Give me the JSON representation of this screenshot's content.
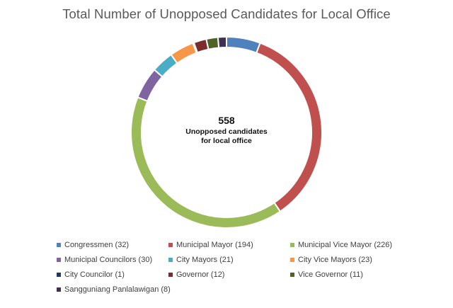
{
  "chart_data": {
    "type": "pie",
    "title": "Total Number of Unopposed Candidates for Local Office",
    "center": {
      "total": "558",
      "caption_line1": "Unopposed candidates",
      "caption_line2": "for local office"
    },
    "categories": [
      "Congressmen",
      "Municipal Mayor",
      "Municipal Vice Mayor",
      "Municipal Councilors",
      "City Mayors",
      "City Vice Mayors",
      "City Councilor",
      "Governor",
      "Vice Governor",
      "Sangguniang Panlalawigan"
    ],
    "values": [
      32,
      194,
      226,
      30,
      21,
      23,
      1,
      12,
      11,
      8
    ],
    "colors": [
      "#4F81BD",
      "#C0504D",
      "#9BBB59",
      "#8064A2",
      "#4BACC6",
      "#F79646",
      "#1F3864",
      "#7B2C2C",
      "#4F6228",
      "#3F3151"
    ],
    "legend_labels": [
      "Congressmen (32)",
      "Municipal Mayor (194)",
      "Municipal Vice Mayor (226)",
      "Municipal Councilors (30)",
      "City Mayors (21)",
      "City Vice Mayors (23)",
      "City Councilor (1)",
      "Governor (12)",
      "Vice Governor (11)",
      "Sangguniang Panlalawigan (8)"
    ],
    "legend_position": "bottom"
  }
}
